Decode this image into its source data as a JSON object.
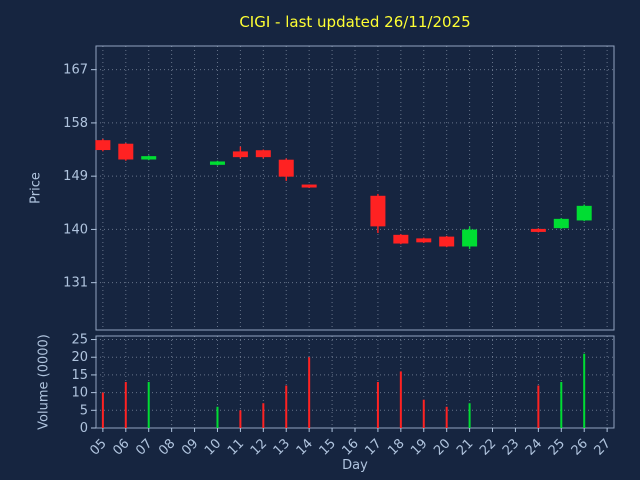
{
  "colors": {
    "background": "#162540",
    "title": "#ffff33",
    "label": "#b0c4de",
    "grid": "#c8d4e4",
    "spine": "#b0c4de",
    "up": "#00dd33",
    "down": "#ff2222"
  },
  "chart_data": {
    "type": "candlestick",
    "title": "CIGI - last updated 26/11/2025",
    "xlabel": "Day",
    "ylabel_top": "Price",
    "ylabel_bottom": "Volume (0000)",
    "grid": "dotted",
    "legend": "none",
    "x_tick_labels": [
      "05",
      "06",
      "07",
      "08",
      "09",
      "10",
      "11",
      "12",
      "13",
      "14",
      "15",
      "16",
      "17",
      "18",
      "19",
      "20",
      "21",
      "22",
      "23",
      "24",
      "25",
      "26",
      "27"
    ],
    "price_ticks": [
      131,
      140,
      149,
      158,
      167
    ],
    "volume_ticks": [
      0,
      5,
      10,
      15,
      20,
      25
    ],
    "price_range": [
      123,
      171
    ],
    "volume_range": [
      0,
      26
    ],
    "x_range": [
      4.7,
      27.3
    ],
    "candles": [
      {
        "day": "05",
        "open": 155.0,
        "high": 155.3,
        "low": 153.2,
        "close": 153.5,
        "direction": "down",
        "volume": 10
      },
      {
        "day": "06",
        "open": 154.4,
        "high": 154.6,
        "low": 151.6,
        "close": 151.9,
        "direction": "down",
        "volume": 13
      },
      {
        "day": "07",
        "open": 151.9,
        "high": 152.5,
        "low": 151.7,
        "close": 152.3,
        "direction": "up",
        "volume": 13
      },
      {
        "day": "10",
        "open": 151.0,
        "high": 151.6,
        "low": 150.8,
        "close": 151.4,
        "direction": "up",
        "volume": 6
      },
      {
        "day": "11",
        "open": 153.1,
        "high": 154.0,
        "low": 152.0,
        "close": 152.3,
        "direction": "down",
        "volume": 5
      },
      {
        "day": "12",
        "open": 153.3,
        "high": 153.5,
        "low": 152.0,
        "close": 152.3,
        "direction": "down",
        "volume": 7
      },
      {
        "day": "13",
        "open": 151.7,
        "high": 152.0,
        "low": 148.2,
        "close": 149.0,
        "direction": "down",
        "volume": 12
      },
      {
        "day": "14",
        "open": 147.5,
        "high": 147.6,
        "low": 147.0,
        "close": 147.2,
        "direction": "down",
        "volume": 20
      },
      {
        "day": "17",
        "open": 145.6,
        "high": 146.0,
        "low": 139.4,
        "close": 140.6,
        "direction": "down",
        "volume": 13
      },
      {
        "day": "18",
        "open": 139.0,
        "high": 139.2,
        "low": 137.5,
        "close": 137.7,
        "direction": "down",
        "volume": 16
      },
      {
        "day": "19",
        "open": 138.4,
        "high": 138.6,
        "low": 137.7,
        "close": 137.9,
        "direction": "down",
        "volume": 8
      },
      {
        "day": "20",
        "open": 138.7,
        "high": 138.9,
        "low": 137.0,
        "close": 137.2,
        "direction": "down",
        "volume": 6
      },
      {
        "day": "21",
        "open": 137.2,
        "high": 140.5,
        "low": 136.7,
        "close": 139.9,
        "direction": "up",
        "volume": 7
      },
      {
        "day": "24",
        "open": 140.0,
        "high": 140.2,
        "low": 139.5,
        "close": 139.7,
        "direction": "down",
        "volume": 12
      },
      {
        "day": "25",
        "open": 140.3,
        "high": 141.9,
        "low": 140.1,
        "close": 141.7,
        "direction": "up",
        "volume": 13
      },
      {
        "day": "26",
        "open": 141.6,
        "high": 144.2,
        "low": 141.4,
        "close": 143.9,
        "direction": "up",
        "volume": 21
      }
    ]
  }
}
